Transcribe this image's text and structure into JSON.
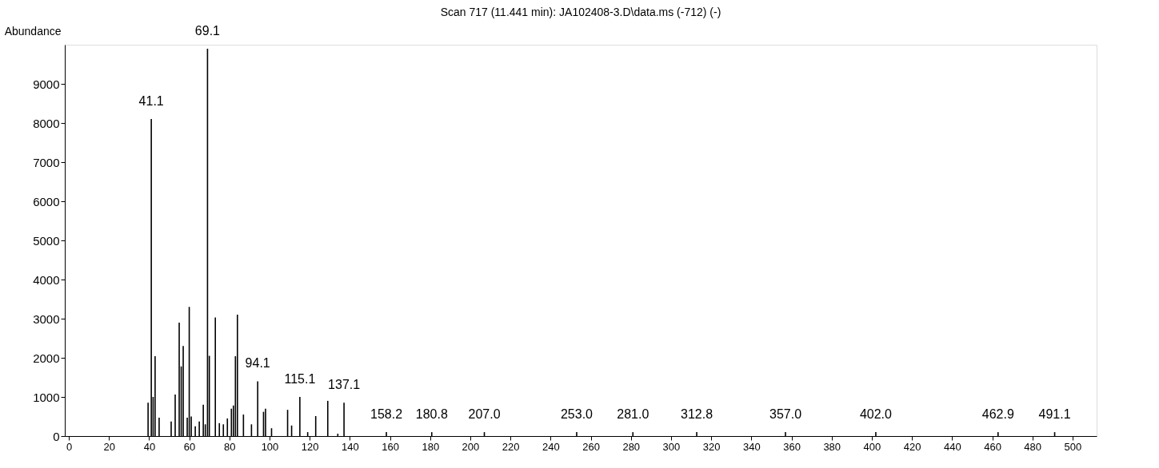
{
  "chart_data": {
    "type": "bar",
    "title": "Scan 717 (11.441 min): JA102408-3.D\\data.ms (-712) (-)",
    "ylabel": "Abundance",
    "x": [
      39.5,
      41.1,
      42,
      43,
      45,
      51,
      53,
      55,
      56,
      57,
      59,
      60,
      61,
      63,
      65,
      67,
      68,
      69.1,
      70,
      73,
      75,
      77,
      79,
      81,
      82,
      83,
      84,
      87,
      91,
      94.1,
      97,
      98,
      101,
      109,
      111,
      115.1,
      119,
      123,
      129,
      134,
      137.1,
      158.2,
      180.8,
      207.0,
      253.0,
      281.0,
      312.8,
      357.0,
      402.0,
      462.9,
      491.1
    ],
    "values": [
      850,
      8100,
      1000,
      2040,
      470,
      370,
      1060,
      2900,
      1780,
      2300,
      470,
      3300,
      500,
      250,
      370,
      800,
      300,
      9900,
      2050,
      3030,
      330,
      300,
      450,
      700,
      780,
      2040,
      3100,
      550,
      300,
      1400,
      620,
      700,
      200,
      670,
      270,
      1000,
      100,
      510,
      900,
      60,
      850,
      100,
      100,
      100,
      100,
      100,
      100,
      100,
      100,
      100,
      100
    ],
    "color": "#000000",
    "annotations": [
      {
        "text": "41.1",
        "x": 41.1,
        "y": 8100
      },
      {
        "text": "69.1",
        "x": 69.1,
        "y": 9900
      },
      {
        "text": "94.1",
        "x": 94.1,
        "y": 1400
      },
      {
        "text": "115.1",
        "x": 115.1,
        "y": 1000
      },
      {
        "text": "137.1",
        "x": 137.1,
        "y": 850
      },
      {
        "text": "158.2",
        "x": 158.2,
        "y": 100
      },
      {
        "text": "180.8",
        "x": 180.8,
        "y": 100
      },
      {
        "text": "207.0",
        "x": 207.0,
        "y": 100
      },
      {
        "text": "253.0",
        "x": 253.0,
        "y": 100
      },
      {
        "text": "281.0",
        "x": 281.0,
        "y": 100
      },
      {
        "text": "312.8",
        "x": 312.8,
        "y": 100
      },
      {
        "text": "357.0",
        "x": 357.0,
        "y": 100
      },
      {
        "text": "402.0",
        "x": 402.0,
        "y": 100
      },
      {
        "text": "462.9",
        "x": 462.9,
        "y": 100
      },
      {
        "text": "491.1",
        "x": 491.1,
        "y": 100
      }
    ],
    "xlim": [
      0,
      510
    ],
    "ylim": [
      0,
      10000
    ],
    "xticks": [
      0,
      20,
      40,
      60,
      80,
      100,
      120,
      140,
      160,
      180,
      200,
      220,
      240,
      260,
      280,
      300,
      320,
      340,
      360,
      380,
      400,
      420,
      440,
      460,
      480,
      500
    ],
    "yticks": [
      0,
      1000,
      2000,
      3000,
      4000,
      5000,
      6000,
      7000,
      8000,
      9000
    ],
    "grid": false
  }
}
